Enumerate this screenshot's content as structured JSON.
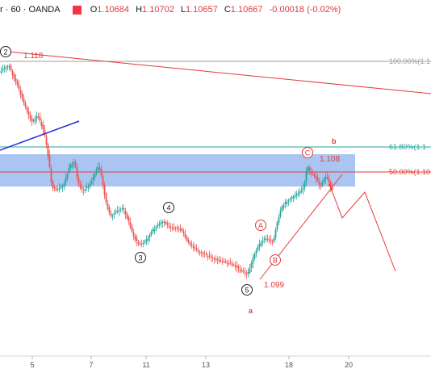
{
  "header": {
    "symbol_text": "r · 60 · OANDA",
    "open_label": "O",
    "open_value": "1.10684",
    "high_label": "H",
    "high_value": "1.10702",
    "low_label": "L",
    "low_value": "1.10657",
    "close_label": "C",
    "close_value": "1.10667",
    "change_text": "-0.00018 (-0.02%)",
    "flag_color": "#f23645"
  },
  "chart_data": {
    "type": "candlestick",
    "x_tick_labels": [
      "5",
      "7",
      "11",
      "13",
      "18",
      "20"
    ],
    "fib_levels": [
      {
        "ratio_label": "100.00%(1.1",
        "color": "#9e9e9e"
      },
      {
        "ratio_label": "61.80%(1.1",
        "color": "#26a69a"
      },
      {
        "ratio_label": "50.00%(1.10",
        "color": "#e53935"
      }
    ],
    "price_labels": [
      "1.118",
      "1.108",
      "1.099"
    ],
    "wave_labels": {
      "impulse": [
        "2",
        "3",
        "4",
        "5"
      ],
      "correction": [
        "A",
        "B",
        "C"
      ],
      "degree_a": "a",
      "degree_b": "b"
    },
    "colors": {
      "up": "#26a69a",
      "down": "#ef5350",
      "zone": "#8fb1ee",
      "trendline_red": "#e53935",
      "trendline_blue": "#2a2fd4"
    }
  }
}
